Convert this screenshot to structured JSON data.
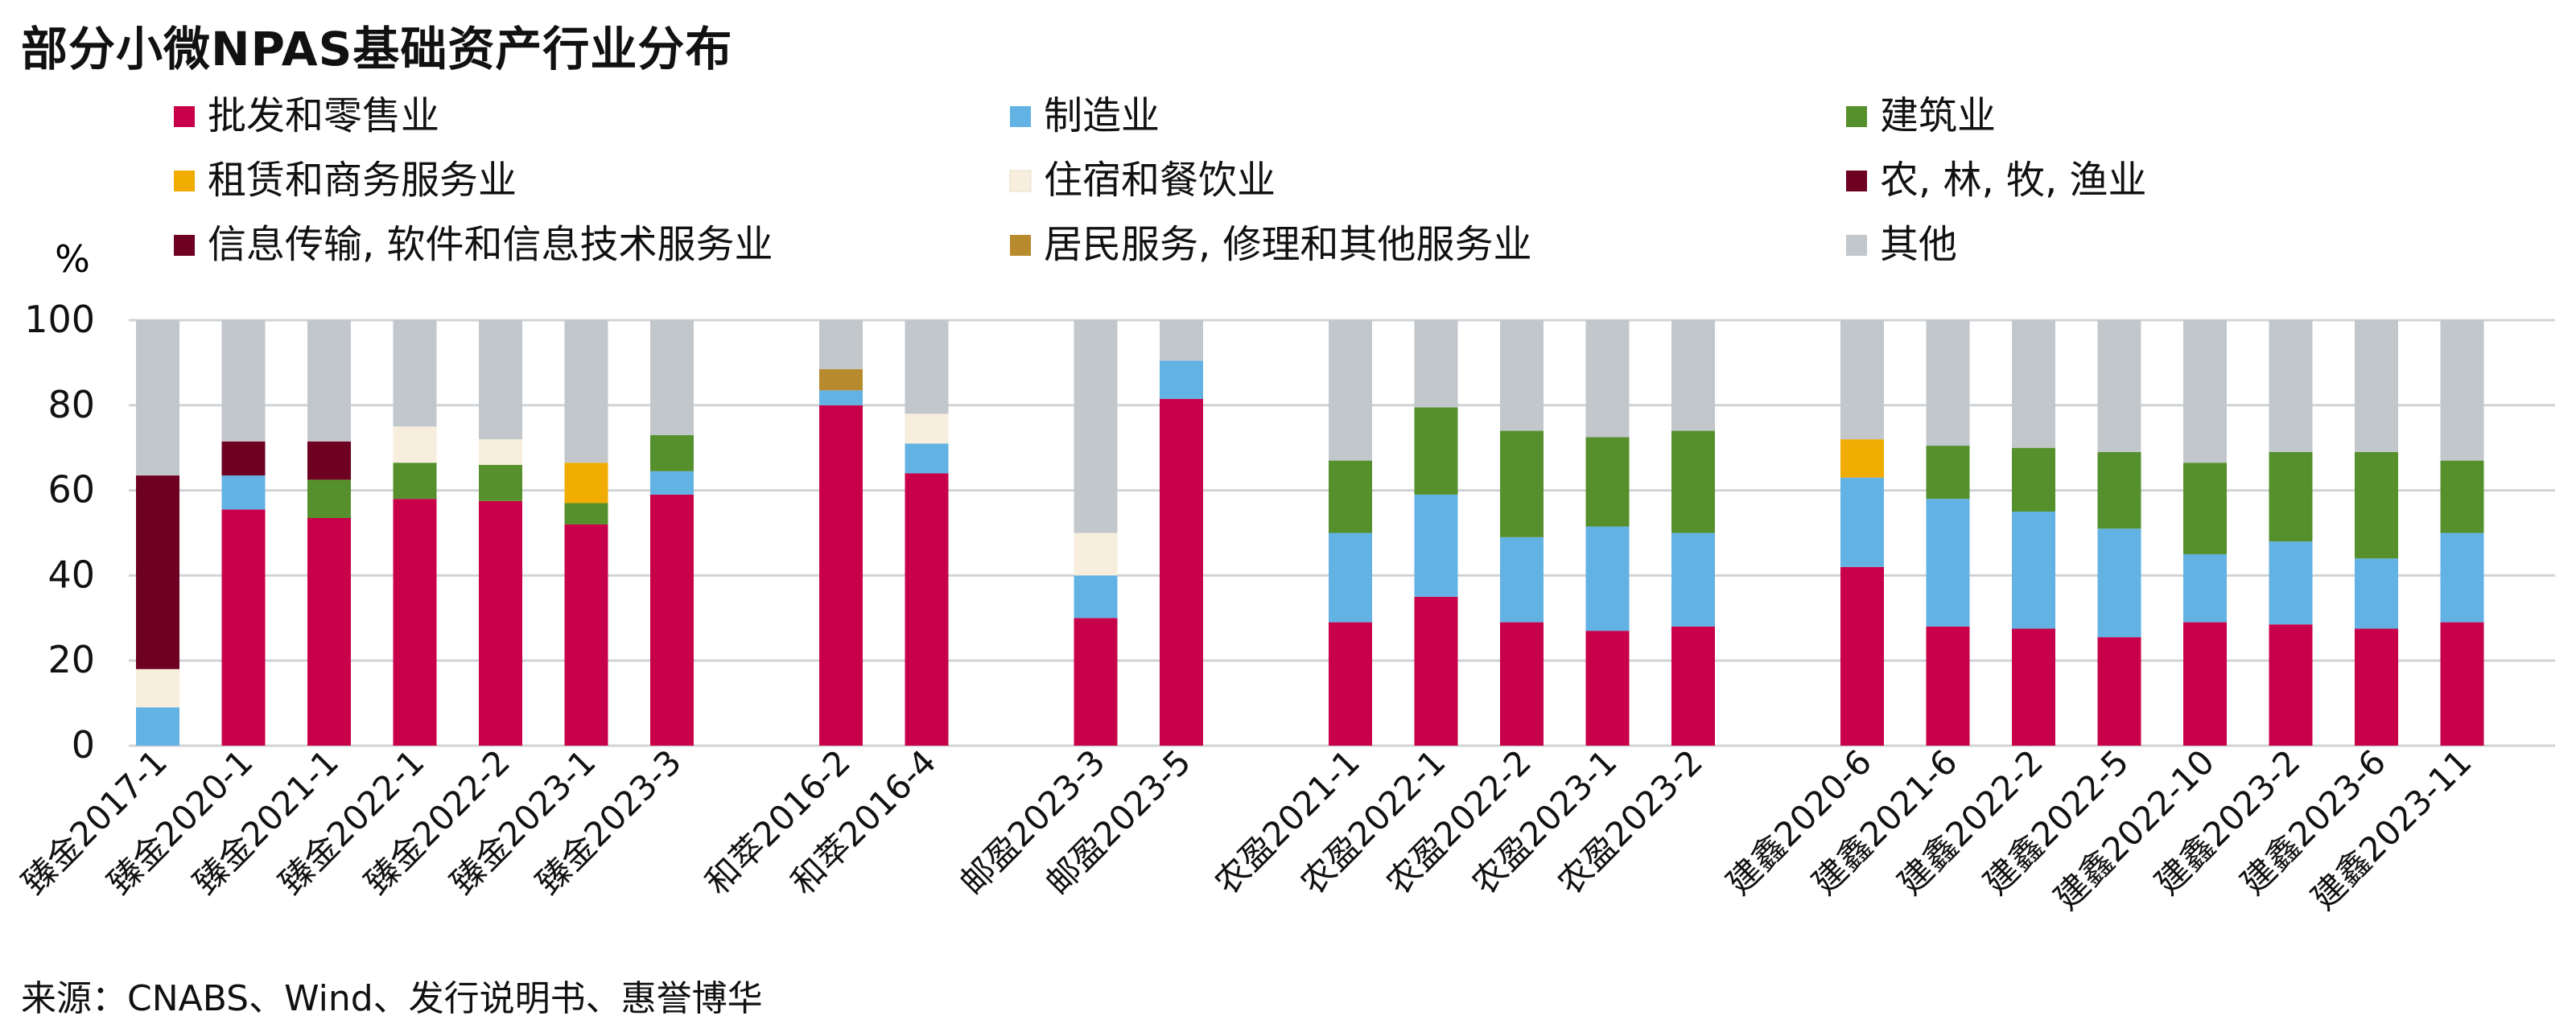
{
  "chart_data": {
    "type": "bar",
    "stacked": true,
    "title": "部分小微NPAS基础资产行业分布",
    "ylabel": "%",
    "ylim": [
      0,
      100
    ],
    "yticks": [
      0,
      20,
      40,
      60,
      80,
      100
    ],
    "grid": true,
    "legend_position": "top",
    "categories": [
      "臻金2017-1",
      "臻金2020-1",
      "臻金2021-1",
      "臻金2022-1",
      "臻金2022-2",
      "臻金2023-1",
      "臻金2023-3",
      "和萃2016-2",
      "和萃2016-4",
      "邮盈2023-3",
      "邮盈2023-5",
      "农盈2021-1",
      "农盈2022-1",
      "农盈2022-2",
      "农盈2023-1",
      "农盈2023-2",
      "建鑫2020-6",
      "建鑫2021-6",
      "建鑫2022-2",
      "建鑫2022-5",
      "建鑫2022-10",
      "建鑫2023-2",
      "建鑫2023-6",
      "建鑫2023-11"
    ],
    "groups": [
      {
        "name": "臻金",
        "size": 7
      },
      {
        "name": "和萃",
        "size": 2
      },
      {
        "name": "邮盈",
        "size": 2
      },
      {
        "name": "农盈",
        "size": 5
      },
      {
        "name": "建鑫",
        "size": 8
      }
    ],
    "series": [
      {
        "name": "批发和零售业",
        "color": "#c8004a",
        "values": [
          0,
          55.5,
          53.5,
          58,
          57.5,
          52,
          59,
          80,
          64,
          30,
          81.5,
          29,
          35,
          29,
          27,
          28,
          42,
          28,
          27.5,
          25.5,
          29,
          28.5,
          27.5,
          29
        ]
      },
      {
        "name": "制造业",
        "color": "#63b2e4",
        "values": [
          9,
          8,
          0,
          0,
          0,
          0,
          5.5,
          3.5,
          7,
          10,
          9,
          21,
          24,
          20,
          24.5,
          22,
          21,
          30,
          27.5,
          25.5,
          16,
          19.5,
          16.5,
          21
        ]
      },
      {
        "name": "建筑业",
        "color": "#56902d",
        "values": [
          0,
          0,
          9,
          8.5,
          8.5,
          5,
          8.5,
          0,
          0,
          0,
          0,
          17,
          20.5,
          25,
          21,
          24,
          0,
          12.5,
          15,
          18,
          21.5,
          21,
          25,
          17
        ]
      },
      {
        "name": "租赁和商务服务业",
        "color": "#f0ac00",
        "values": [
          0,
          0,
          0,
          0,
          0,
          9.5,
          0,
          0,
          0,
          0,
          0,
          0,
          0,
          0,
          0,
          0,
          9,
          0,
          0,
          0,
          0,
          0,
          0,
          0
        ]
      },
      {
        "name": "住宿和餐饮业",
        "color": "#f7eedd",
        "values": [
          9,
          0,
          0,
          8.5,
          6,
          0,
          0,
          0,
          7,
          10,
          0,
          0,
          0,
          0,
          0,
          0,
          0,
          0,
          0,
          0,
          0,
          0,
          0,
          0
        ]
      },
      {
        "name": "农, 林, 牧, 渔业",
        "color": "#6e0022",
        "values": [
          45.5,
          0,
          0,
          0,
          0,
          0,
          0,
          0,
          0,
          0,
          0,
          0,
          0,
          0,
          0,
          0,
          0,
          0,
          0,
          0,
          0,
          0,
          0,
          0
        ]
      },
      {
        "name": "信息传输, 软件和信息技术服务业",
        "color": "#6e0022",
        "values": [
          0,
          8,
          9,
          0,
          0,
          0,
          0,
          0,
          0,
          0,
          0,
          0,
          0,
          0,
          0,
          0,
          0,
          0,
          0,
          0,
          0,
          0,
          0,
          0
        ]
      },
      {
        "name": "居民服务, 修理和其他服务业",
        "color": "#b88a2e",
        "values": [
          0,
          0,
          0,
          0,
          0,
          0,
          0,
          5,
          0,
          0,
          0,
          0,
          0,
          0,
          0,
          0,
          0,
          0,
          0,
          0,
          0,
          0,
          0,
          0
        ]
      },
      {
        "name": "其他",
        "color": "#c2c7cc",
        "values": [
          36.5,
          28.5,
          28.5,
          25,
          28,
          33.5,
          27,
          11.5,
          22,
          50,
          9.5,
          33,
          20.5,
          26,
          27.5,
          26,
          28,
          29.5,
          30,
          31,
          33.5,
          31,
          31,
          33
        ]
      }
    ]
  },
  "source_note": "来源：CNABS、Wind、发行说明书、惠誉博华"
}
